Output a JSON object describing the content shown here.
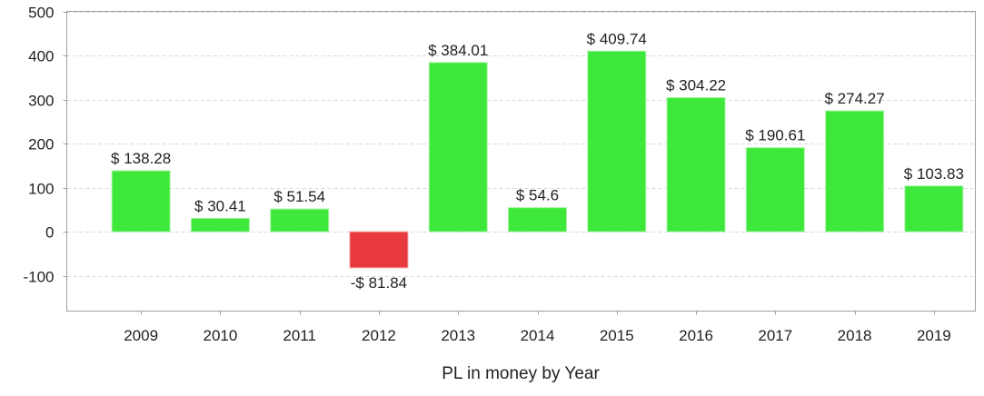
{
  "chart_data": {
    "type": "bar",
    "title": "",
    "xlabel": "PL in money by Year",
    "ylabel": "",
    "ylim": [
      -180,
      500
    ],
    "yticks": [
      -100,
      0,
      100,
      200,
      300,
      400,
      500
    ],
    "grid": true,
    "categories": [
      "2009",
      "2010",
      "2011",
      "2012",
      "2013",
      "2014",
      "2015",
      "2016",
      "2017",
      "2018",
      "2019"
    ],
    "values": [
      138.28,
      30.41,
      51.54,
      -81.84,
      384.01,
      54.6,
      409.74,
      304.22,
      190.61,
      274.27,
      103.83
    ],
    "data_labels": [
      "$ 138.28",
      "$ 30.41",
      "$ 51.54",
      "-$ 81.84",
      "$ 384.01",
      "$ 54.6",
      "$ 409.74",
      "$ 304.22",
      "$ 190.61",
      "$ 274.27",
      "$ 103.83"
    ],
    "colors": {
      "positive": "#3ee83a",
      "negative": "#e83a3e",
      "grid": "#d8d8d8",
      "axis": "#a0a0a0"
    }
  }
}
